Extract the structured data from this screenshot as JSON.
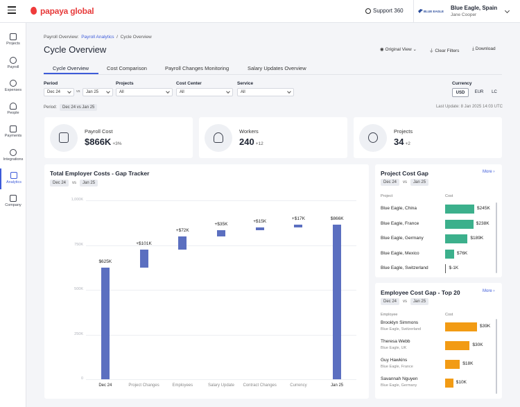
{
  "header": {
    "brand": "papaya global",
    "support": "Support 360",
    "company_logo": "BLUE EAGLE",
    "company": "Blue Eagle, Spain",
    "user": "Jane Cooper"
  },
  "sidebar": {
    "items": [
      {
        "label": "Projects",
        "icon": "grid-icon"
      },
      {
        "label": "Payroll",
        "icon": "dollar-icon"
      },
      {
        "label": "Expenses",
        "icon": "coins-icon"
      },
      {
        "label": "People",
        "icon": "people-icon"
      },
      {
        "label": "Payments",
        "icon": "card-icon"
      },
      {
        "label": "Integrations",
        "icon": "sync-icon"
      },
      {
        "label": "Analytics",
        "icon": "chart-icon"
      },
      {
        "label": "Company",
        "icon": "building-icon"
      }
    ],
    "active": "Analytics"
  },
  "breadcrumb": {
    "root": "Payroll Overview:",
    "link": "Payroll Analytics",
    "sep": "/",
    "current": "Cycle Overview"
  },
  "page": {
    "title": "Cycle Overview"
  },
  "actions": {
    "view": "Original View",
    "clear": "Clear Filters",
    "download": "Download"
  },
  "tabs": [
    "Cycle Overview",
    "Cost Comparison",
    "Payroll Changes Monitoring",
    "Salary Updates Overview"
  ],
  "filters": {
    "period_label": "Period",
    "period_from": "Dec 24",
    "vs": "vs",
    "period_to": "Jan 25",
    "projects_label": "Projects",
    "projects_value": "All",
    "cost_center_label": "Cost Center",
    "cost_center_value": "All",
    "service_label": "Service",
    "service_value": "All",
    "currency_label": "Currency",
    "currency_options": [
      "USD",
      "EUR",
      "LC"
    ],
    "currency_selected": "USD"
  },
  "period_row": {
    "label": "Period:",
    "value": "Dec 24 vs Jan 25"
  },
  "last_update": "Last Update: 8 Jan 2025 14:03 UTC",
  "kpis": [
    {
      "label": "Payroll Cost",
      "value": "$866K",
      "delta": "+3%",
      "icon": "payroll-icon"
    },
    {
      "label": "Workers",
      "value": "240",
      "delta": "+12",
      "icon": "workers-icon"
    },
    {
      "label": "Projects",
      "value": "34",
      "delta": "+2",
      "icon": "globe-icon"
    }
  ],
  "gap_tracker": {
    "title": "Total Employer Costs - Gap Tracker",
    "chip_a": "Dec 24",
    "vs": "vs",
    "chip_b": "Jan 25",
    "bar_color": "#5b6fc0"
  },
  "chart_data": {
    "type": "bar",
    "subtype": "waterfall",
    "title": "Total Employer Costs - Gap Tracker",
    "categories": [
      "Dec 24",
      "Project Changes",
      "Employees",
      "Salary Update",
      "Contract Changes",
      "Currency",
      "Jan 25"
    ],
    "values": [
      625,
      101,
      72,
      35,
      15,
      17,
      866
    ],
    "data_labels": [
      "$625K",
      "+$101K",
      "+$72K",
      "+$35K",
      "+$15K",
      "+$17K",
      "$866K"
    ],
    "ytick_labels": [
      "0",
      "250K",
      "500K",
      "750K",
      "1,000K"
    ],
    "ylim": [
      0,
      1000
    ],
    "y_unit": "K",
    "grid": true
  },
  "project_gap": {
    "title": "Project Cost Gap",
    "more": "More",
    "chip_a": "Dec 24",
    "vs": "vs",
    "chip_b": "Jan 25",
    "col_project": "Project",
    "col_cost": "Cost",
    "color": "#3cb08c",
    "rows": [
      {
        "name": "Blue Eagle, China",
        "value": "$245K",
        "amount": 245
      },
      {
        "name": "Blue Eagle, France",
        "value": "$238K",
        "amount": 238
      },
      {
        "name": "Blue Eagle, Germany",
        "value": "$189K",
        "amount": 189
      },
      {
        "name": "Blue Eagle, Mexico",
        "value": "$76K",
        "amount": 76
      },
      {
        "name": "Blue Eagle, Switzerland",
        "value": "$-1K",
        "amount": -1
      }
    ]
  },
  "employee_gap": {
    "title": "Employee Cost Gap - Top 20",
    "more": "More",
    "chip_a": "Dec 24",
    "vs": "vs",
    "chip_b": "Jan 25",
    "col_employee": "Employee",
    "col_cost": "Cost",
    "color": "#f29b14",
    "rows": [
      {
        "name": "Brooklyn Simmons",
        "sub": "Blue Eagle, Switzerland",
        "value": "$39K",
        "amount": 39
      },
      {
        "name": "Theresa Webb",
        "sub": "Blue Eagle, UK",
        "value": "$30K",
        "amount": 30
      },
      {
        "name": "Guy Hawkins",
        "sub": "Blue Eagle, France",
        "value": "$18K",
        "amount": 18
      },
      {
        "name": "Savannah Nguyen",
        "sub": "Blue Eagle, Germany",
        "value": "$10K",
        "amount": 10
      }
    ]
  }
}
